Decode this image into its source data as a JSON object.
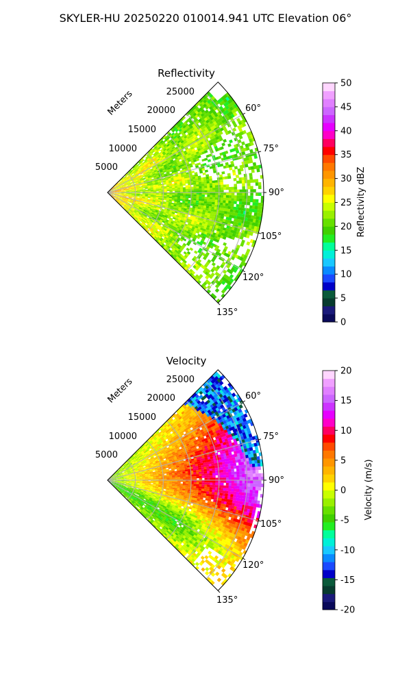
{
  "figure_title": "SKYLER-HU  20250220  010014.941 UTC Elevation 06°",
  "chart_data": [
    {
      "type": "heatmap",
      "projection": "polar-sector",
      "title": "Reflectivity",
      "radial_label": "Meters",
      "theta_range_deg": [
        45,
        135
      ],
      "theta_ticks": [
        "60°",
        "75°",
        "90°",
        "105°",
        "120°",
        "135°"
      ],
      "theta_values": [
        60,
        75,
        90,
        105,
        120,
        135
      ],
      "r_ticks": [
        "5000",
        "10000",
        "15000",
        "20000",
        "25000"
      ],
      "r_values": [
        5000,
        10000,
        15000,
        20000,
        25000
      ],
      "r_max": 28000,
      "grid": true,
      "colorbar": {
        "label": "Reflectivity dBZ",
        "range": [
          0,
          50
        ],
        "ticks": [
          "0",
          "5",
          "10",
          "15",
          "20",
          "25",
          "30",
          "35",
          "40",
          "45",
          "50"
        ],
        "tick_values": [
          0,
          5,
          10,
          15,
          20,
          25,
          30,
          35,
          40,
          45,
          50
        ],
        "colors": [
          "#0a0a5a",
          "#1a1a7a",
          "#073b2e",
          "#0a5a3a",
          "#0000c8",
          "#1a4aff",
          "#0a8aff",
          "#19c8ff",
          "#00f0d8",
          "#00ff9a",
          "#22ee22",
          "#40d000",
          "#66e000",
          "#99f000",
          "#c8ff00",
          "#ffff00",
          "#ffd200",
          "#ffb400",
          "#ff9600",
          "#ff7800",
          "#ff4a00",
          "#ff0000",
          "#ff0060",
          "#ff00c8",
          "#e600ff",
          "#cc33ff",
          "#cc66ff",
          "#e080ff",
          "#f0a0ff",
          "#ffd6ff"
        ]
      },
      "field_summary": "Mostly 20-27 dBZ (green-yellow) across the sector, with 28-34 dBZ (orange) near the radar and scattered yellow patches",
      "sample_profile": {
        "range_m": [
          1000,
          3000,
          5000,
          10000,
          15000,
          20000,
          25000
        ],
        "typical_value": [
          32,
          29,
          26,
          25,
          24,
          23,
          22
        ]
      }
    },
    {
      "type": "heatmap",
      "projection": "polar-sector",
      "title": "Velocity",
      "radial_label": "Meters",
      "theta_range_deg": [
        45,
        135
      ],
      "theta_ticks": [
        "60°",
        "75°",
        "90°",
        "105°",
        "120°",
        "135°"
      ],
      "theta_values": [
        60,
        75,
        90,
        105,
        120,
        135
      ],
      "r_ticks": [
        "5000",
        "10000",
        "15000",
        "20000",
        "25000"
      ],
      "r_values": [
        5000,
        10000,
        15000,
        20000,
        25000
      ],
      "r_max": 28000,
      "grid": true,
      "colorbar": {
        "label": "Velocity (m/s)",
        "range": [
          -20,
          20
        ],
        "ticks": [
          "-20",
          "-15",
          "-10",
          "-5",
          "0",
          "5",
          "10",
          "15",
          "20"
        ],
        "tick_values": [
          -20,
          -15,
          -10,
          -5,
          0,
          5,
          10,
          15,
          20
        ],
        "colors": [
          "#0a0a5a",
          "#1a1a7a",
          "#073b2e",
          "#0a5a3a",
          "#0000c8",
          "#1a4aff",
          "#0a8aff",
          "#19c8ff",
          "#00f0d8",
          "#00ff9a",
          "#22ee22",
          "#40d000",
          "#66e000",
          "#99f000",
          "#c8ff00",
          "#ffff00",
          "#ffd200",
          "#ffb400",
          "#ff9600",
          "#ff7800",
          "#ff4a00",
          "#ff0000",
          "#ff0060",
          "#ff00c8",
          "#e600ff",
          "#cc33ff",
          "#cc66ff",
          "#e080ff",
          "#f0a0ff",
          "#ffd6ff"
        ]
      },
      "field_summary": "Near radar about -3 m/s (green-yellow); 0-6 m/s (yellow-orange) at mid range; 8-15 m/s (red-magenta) at 15-25 km for 55-110°; folded -10 to -14 m/s (cyan) at far range near 60-85°; -3 to -6 m/s (green) at 105-130°",
      "sample_profile": {
        "range_m": [
          2000,
          8000,
          12000,
          16000,
          20000,
          24000
        ],
        "typical_value_at_90deg": [
          -2,
          2,
          6,
          9,
          12,
          15
        ]
      }
    }
  ]
}
